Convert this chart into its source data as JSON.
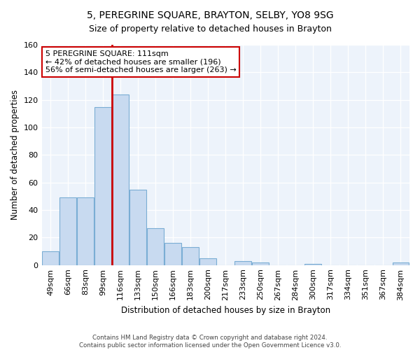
{
  "title": "5, PEREGRINE SQUARE, BRAYTON, SELBY, YO8 9SG",
  "subtitle": "Size of property relative to detached houses in Brayton",
  "xlabel": "Distribution of detached houses by size in Brayton",
  "ylabel": "Number of detached properties",
  "bar_labels": [
    "49sqm",
    "66sqm",
    "83sqm",
    "99sqm",
    "116sqm",
    "133sqm",
    "150sqm",
    "166sqm",
    "183sqm",
    "200sqm",
    "217sqm",
    "233sqm",
    "250sqm",
    "267sqm",
    "284sqm",
    "300sqm",
    "317sqm",
    "334sqm",
    "351sqm",
    "367sqm",
    "384sqm"
  ],
  "bar_heights": [
    10,
    49,
    49,
    115,
    124,
    55,
    27,
    16,
    13,
    5,
    0,
    3,
    2,
    0,
    0,
    1,
    0,
    0,
    0,
    0,
    2
  ],
  "bar_color": "#c8daf0",
  "bar_edge_color": "#7aadd4",
  "vline_x_index": 3.5,
  "vline_color": "#cc0000",
  "annotation_title": "5 PEREGRINE SQUARE: 111sqm",
  "annotation_line1": "← 42% of detached houses are smaller (196)",
  "annotation_line2": "56% of semi-detached houses are larger (263) →",
  "annotation_box_color": "#ffffff",
  "annotation_box_edge": "#cc0000",
  "ylim": [
    0,
    160
  ],
  "footer1": "Contains HM Land Registry data © Crown copyright and database right 2024.",
  "footer2": "Contains public sector information licensed under the Open Government Licence v3.0."
}
